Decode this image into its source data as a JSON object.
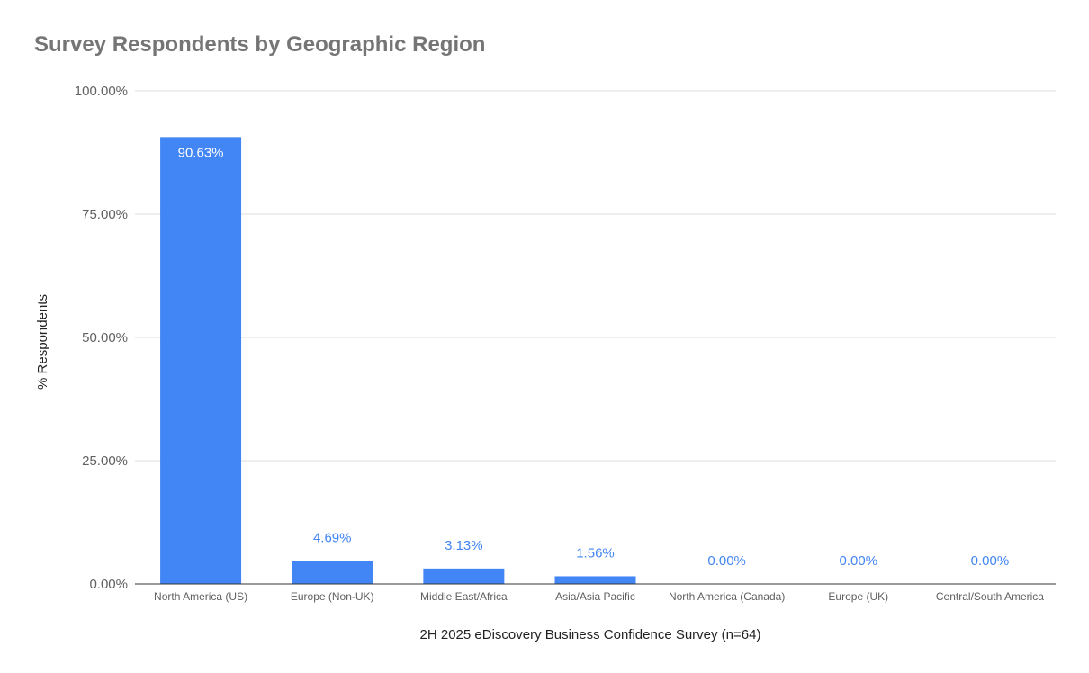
{
  "chart_data": {
    "type": "bar",
    "title": "Survey Respondents by Geographic Region",
    "xlabel": "2H 2025 eDiscovery Business Confidence Survey (n=64)",
    "ylabel": "% Respondents",
    "categories": [
      "North America (US)",
      "Europe (Non-UK)",
      "Middle East/Africa",
      "Asia/Asia Pacific",
      "North America (Canada)",
      "Europe (UK)",
      "Central/South America"
    ],
    "values": [
      90.63,
      4.69,
      3.13,
      1.56,
      0.0,
      0.0,
      0.0
    ],
    "value_labels": [
      "90.63%",
      "4.69%",
      "3.13%",
      "1.56%",
      "0.00%",
      "0.00%",
      "0.00%"
    ],
    "yticks": [
      0,
      25,
      50,
      75,
      100
    ],
    "ytick_labels": [
      "0.00%",
      "25.00%",
      "50.00%",
      "75.00%",
      "100.00%"
    ],
    "ylim": [
      0,
      100
    ],
    "grid": true,
    "legend": "none",
    "colors": {
      "bar": "#4285f4",
      "grid": "#dddddd",
      "axis": "#333333",
      "label_inside": "#ffffff",
      "label_outside": "#4285f4"
    }
  }
}
